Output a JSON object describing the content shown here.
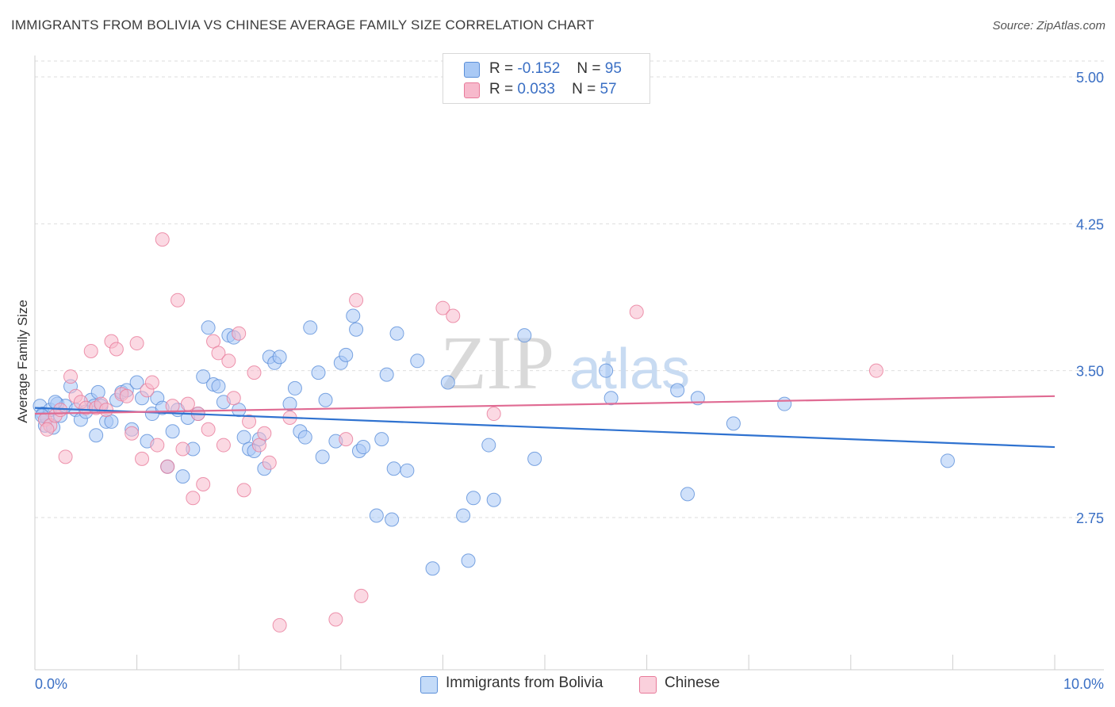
{
  "title": "IMMIGRANTS FROM BOLIVIA VS CHINESE AVERAGE FAMILY SIZE CORRELATION CHART",
  "source": "Source: ZipAtlas.com",
  "watermark": {
    "zip": "ZIP",
    "atlas": "atlas"
  },
  "legend": {
    "rows": [
      {
        "r_label": "R =",
        "r_value": "-0.152",
        "n_label": "N =",
        "n_value": "95",
        "color": "#a9c9f5"
      },
      {
        "r_label": "R =",
        "r_value": "0.033",
        "n_label": "N =",
        "n_value": "57",
        "color": "#f7b9cc"
      }
    ]
  },
  "bottom_legend": [
    {
      "label": "Immigrants from Bolivia",
      "color": "#a9c9f5"
    },
    {
      "label": "Chinese",
      "color": "#f7b9cc"
    }
  ],
  "chart_data": {
    "type": "scatter",
    "title": "IMMIGRANTS FROM BOLIVIA VS CHINESE AVERAGE FAMILY SIZE CORRELATION CHART",
    "xlabel": "",
    "ylabel": "Average Family Size",
    "xlim": [
      0.0,
      10.0
    ],
    "ylim": [
      2.0,
      5.1
    ],
    "x_tick_labels": [
      "0.0%",
      "10.0%"
    ],
    "y_ticks": [
      2.75,
      3.5,
      4.25,
      5.0
    ],
    "y_tick_labels": [
      "2.75",
      "3.50",
      "4.25",
      "5.00"
    ],
    "grid": true,
    "legend_position": "top-center",
    "series": [
      {
        "name": "Immigrants from Bolivia",
        "color": "#5b8fd9",
        "fill": "#a9c9f5",
        "trend": {
          "x": [
            0.0,
            10.0
          ],
          "y": [
            3.31,
            3.11
          ]
        },
        "points": [
          [
            0.05,
            3.32
          ],
          [
            0.08,
            3.28
          ],
          [
            0.1,
            3.22
          ],
          [
            0.12,
            3.26
          ],
          [
            0.15,
            3.3
          ],
          [
            0.18,
            3.21
          ],
          [
            0.22,
            3.33
          ],
          [
            0.25,
            3.27
          ],
          [
            0.3,
            3.32
          ],
          [
            0.35,
            3.42
          ],
          [
            0.4,
            3.3
          ],
          [
            0.45,
            3.25
          ],
          [
            0.5,
            3.29
          ],
          [
            0.55,
            3.35
          ],
          [
            0.6,
            3.17
          ],
          [
            0.62,
            3.39
          ],
          [
            0.65,
            3.32
          ],
          [
            0.7,
            3.24
          ],
          [
            0.75,
            3.24
          ],
          [
            0.8,
            3.35
          ],
          [
            0.85,
            3.39
          ],
          [
            0.9,
            3.4
          ],
          [
            0.95,
            3.2
          ],
          [
            1.0,
            3.44
          ],
          [
            1.05,
            3.36
          ],
          [
            1.1,
            3.14
          ],
          [
            1.15,
            3.28
          ],
          [
            1.2,
            3.36
          ],
          [
            1.25,
            3.31
          ],
          [
            1.3,
            3.01
          ],
          [
            1.35,
            3.19
          ],
          [
            1.4,
            3.3
          ],
          [
            1.45,
            2.96
          ],
          [
            1.5,
            3.26
          ],
          [
            1.55,
            3.1
          ],
          [
            1.6,
            3.28
          ],
          [
            1.65,
            3.47
          ],
          [
            1.7,
            3.72
          ],
          [
            1.75,
            3.43
          ],
          [
            1.8,
            3.42
          ],
          [
            1.85,
            3.34
          ],
          [
            1.9,
            3.68
          ],
          [
            1.95,
            3.67
          ],
          [
            2.0,
            3.3
          ],
          [
            2.05,
            3.16
          ],
          [
            2.1,
            3.1
          ],
          [
            2.15,
            3.09
          ],
          [
            2.2,
            3.15
          ],
          [
            2.25,
            3.0
          ],
          [
            2.3,
            3.57
          ],
          [
            2.35,
            3.54
          ],
          [
            2.4,
            3.57
          ],
          [
            2.5,
            3.33
          ],
          [
            2.55,
            3.41
          ],
          [
            2.6,
            3.19
          ],
          [
            2.65,
            3.16
          ],
          [
            2.7,
            3.72
          ],
          [
            2.78,
            3.49
          ],
          [
            2.82,
            3.06
          ],
          [
            2.85,
            3.35
          ],
          [
            2.95,
            3.14
          ],
          [
            3.0,
            3.54
          ],
          [
            3.05,
            3.58
          ],
          [
            3.12,
            3.78
          ],
          [
            3.15,
            3.71
          ],
          [
            3.18,
            3.09
          ],
          [
            3.22,
            3.11
          ],
          [
            3.35,
            2.76
          ],
          [
            3.4,
            3.15
          ],
          [
            3.45,
            3.48
          ],
          [
            3.5,
            2.74
          ],
          [
            3.52,
            3.0
          ],
          [
            3.55,
            3.69
          ],
          [
            3.65,
            2.99
          ],
          [
            3.75,
            3.55
          ],
          [
            3.9,
            2.49
          ],
          [
            4.05,
            3.44
          ],
          [
            4.2,
            2.76
          ],
          [
            4.25,
            2.53
          ],
          [
            4.3,
            2.85
          ],
          [
            4.45,
            3.12
          ],
          [
            4.5,
            2.84
          ],
          [
            4.8,
            3.68
          ],
          [
            4.9,
            3.05
          ],
          [
            5.6,
            3.5
          ],
          [
            5.65,
            3.36
          ],
          [
            6.3,
            3.4
          ],
          [
            6.4,
            2.87
          ],
          [
            6.5,
            3.36
          ],
          [
            6.85,
            3.23
          ],
          [
            7.35,
            3.33
          ],
          [
            8.95,
            3.04
          ],
          [
            0.07,
            3.27
          ],
          [
            0.2,
            3.34
          ],
          [
            0.58,
            3.32
          ]
        ]
      },
      {
        "name": "Chinese",
        "color": "#e87a9a",
        "fill": "#f7b9cc",
        "trend": {
          "x": [
            0.0,
            10.0
          ],
          "y": [
            3.28,
            3.37
          ]
        },
        "points": [
          [
            0.1,
            3.25
          ],
          [
            0.15,
            3.22
          ],
          [
            0.2,
            3.27
          ],
          [
            0.25,
            3.3
          ],
          [
            0.3,
            3.06
          ],
          [
            0.35,
            3.47
          ],
          [
            0.4,
            3.37
          ],
          [
            0.45,
            3.34
          ],
          [
            0.5,
            3.31
          ],
          [
            0.55,
            3.6
          ],
          [
            0.6,
            3.31
          ],
          [
            0.65,
            3.33
          ],
          [
            0.7,
            3.3
          ],
          [
            0.75,
            3.65
          ],
          [
            0.8,
            3.61
          ],
          [
            0.85,
            3.38
          ],
          [
            0.9,
            3.37
          ],
          [
            0.95,
            3.18
          ],
          [
            1.0,
            3.64
          ],
          [
            1.05,
            3.05
          ],
          [
            1.1,
            3.4
          ],
          [
            1.15,
            3.44
          ],
          [
            1.2,
            3.12
          ],
          [
            1.25,
            4.17
          ],
          [
            1.3,
            3.01
          ],
          [
            1.35,
            3.32
          ],
          [
            1.4,
            3.86
          ],
          [
            1.45,
            3.1
          ],
          [
            1.5,
            3.33
          ],
          [
            1.55,
            2.85
          ],
          [
            1.6,
            3.28
          ],
          [
            1.65,
            2.92
          ],
          [
            1.7,
            3.2
          ],
          [
            1.75,
            3.65
          ],
          [
            1.8,
            3.59
          ],
          [
            1.85,
            3.12
          ],
          [
            1.9,
            3.55
          ],
          [
            1.95,
            3.36
          ],
          [
            2.0,
            3.69
          ],
          [
            2.05,
            2.89
          ],
          [
            2.1,
            3.24
          ],
          [
            2.15,
            3.49
          ],
          [
            2.2,
            3.12
          ],
          [
            2.25,
            3.18
          ],
          [
            2.3,
            3.03
          ],
          [
            2.4,
            2.2
          ],
          [
            2.5,
            3.26
          ],
          [
            2.95,
            2.23
          ],
          [
            3.05,
            3.15
          ],
          [
            3.15,
            3.86
          ],
          [
            3.2,
            2.35
          ],
          [
            4.0,
            3.82
          ],
          [
            4.1,
            3.78
          ],
          [
            4.5,
            3.28
          ],
          [
            5.9,
            3.8
          ],
          [
            8.25,
            3.5
          ],
          [
            0.12,
            3.2
          ]
        ]
      }
    ]
  }
}
